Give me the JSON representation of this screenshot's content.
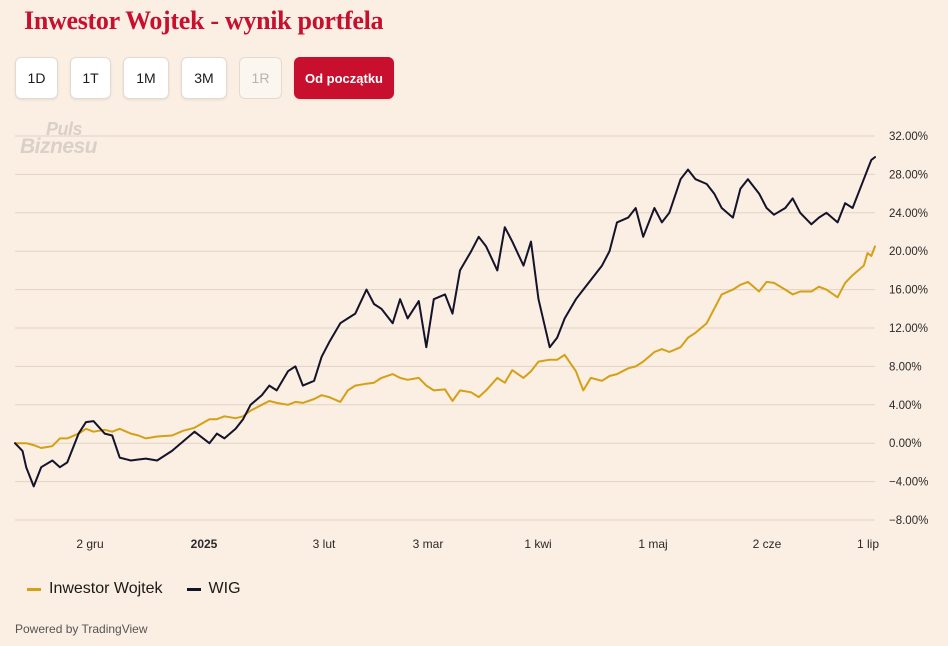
{
  "header": {
    "title": "Inwestor Wojtek - wynik portfela"
  },
  "range_buttons": [
    {
      "label": "1D",
      "state": "normal"
    },
    {
      "label": "1T",
      "state": "normal"
    },
    {
      "label": "1M",
      "state": "normal"
    },
    {
      "label": "3M",
      "state": "normal"
    },
    {
      "label": "1R",
      "state": "disabled"
    },
    {
      "label": "Od początku",
      "state": "active"
    }
  ],
  "watermark": {
    "line1": "Puls",
    "line2": "Biznesu"
  },
  "footer": {
    "powered_by": "Powered by TradingView"
  },
  "colors": {
    "title": "#c8102e",
    "active_button": "#c8102e",
    "wojtek": "#d4a017",
    "wig": "#13132a",
    "grid": "#e2d3c6",
    "background": "#fbeee2"
  },
  "chart_data": {
    "type": "line",
    "y_axis": {
      "position": "right",
      "ticks": [
        "32.00%",
        "28.00%",
        "24.00%",
        "20.00%",
        "16.00%",
        "12.00%",
        "8.00%",
        "4.00%",
        "0.00%",
        "−4.00%",
        "−8.00%"
      ],
      "ylim": [
        -8,
        32
      ],
      "unit": "%"
    },
    "x_axis": {
      "ticks": [
        "2 gru",
        "2025",
        "3 lut",
        "3 mar",
        "1 kwi",
        "1 maj",
        "2 cze",
        "1 lip"
      ],
      "bold_ticks": [
        "2025"
      ],
      "range": [
        "2024-11-15",
        "2025-07-03"
      ]
    },
    "grid": true,
    "legend_position": "bottom-left",
    "series": [
      {
        "name": "Inwestor Wojtek",
        "color": "#d4a017",
        "points": [
          [
            "2024-11-15",
            0.0
          ],
          [
            "2024-11-18",
            0.0
          ],
          [
            "2024-11-20",
            -0.2
          ],
          [
            "2024-11-22",
            -0.5
          ],
          [
            "2024-11-25",
            -0.3
          ],
          [
            "2024-11-27",
            0.5
          ],
          [
            "2024-11-29",
            0.5
          ],
          [
            "2024-12-02",
            1.0
          ],
          [
            "2024-12-04",
            1.5
          ],
          [
            "2024-12-06",
            1.2
          ],
          [
            "2024-12-09",
            1.4
          ],
          [
            "2024-12-11",
            1.2
          ],
          [
            "2024-12-13",
            1.5
          ],
          [
            "2024-12-16",
            1.0
          ],
          [
            "2024-12-18",
            0.8
          ],
          [
            "2024-12-20",
            0.5
          ],
          [
            "2024-12-23",
            0.7
          ],
          [
            "2024-12-27",
            0.8
          ],
          [
            "2024-12-30",
            1.3
          ],
          [
            "2025-01-02",
            1.6
          ],
          [
            "2025-01-06",
            2.5
          ],
          [
            "2025-01-08",
            2.5
          ],
          [
            "2025-01-10",
            2.8
          ],
          [
            "2025-01-13",
            2.6
          ],
          [
            "2025-01-15",
            2.8
          ],
          [
            "2025-01-17",
            3.4
          ],
          [
            "2025-01-20",
            4.0
          ],
          [
            "2025-01-22",
            4.4
          ],
          [
            "2025-01-24",
            4.2
          ],
          [
            "2025-01-27",
            4.0
          ],
          [
            "2025-01-29",
            4.3
          ],
          [
            "2025-01-31",
            4.2
          ],
          [
            "2025-02-03",
            4.6
          ],
          [
            "2025-02-05",
            5.0
          ],
          [
            "2025-02-07",
            4.8
          ],
          [
            "2025-02-10",
            4.3
          ],
          [
            "2025-02-12",
            5.5
          ],
          [
            "2025-02-14",
            6.0
          ],
          [
            "2025-02-17",
            6.2
          ],
          [
            "2025-02-19",
            6.3
          ],
          [
            "2025-02-21",
            6.8
          ],
          [
            "2025-02-24",
            7.2
          ],
          [
            "2025-02-26",
            6.8
          ],
          [
            "2025-02-28",
            6.6
          ],
          [
            "2025-03-03",
            6.8
          ],
          [
            "2025-03-05",
            6.0
          ],
          [
            "2025-03-07",
            5.5
          ],
          [
            "2025-03-10",
            5.6
          ],
          [
            "2025-03-12",
            4.4
          ],
          [
            "2025-03-14",
            5.5
          ],
          [
            "2025-03-17",
            5.3
          ],
          [
            "2025-03-19",
            4.8
          ],
          [
            "2025-03-21",
            5.5
          ],
          [
            "2025-03-24",
            6.8
          ],
          [
            "2025-03-26",
            6.3
          ],
          [
            "2025-03-28",
            7.6
          ],
          [
            "2025-03-31",
            6.8
          ],
          [
            "2025-04-02",
            7.5
          ],
          [
            "2025-04-04",
            8.5
          ],
          [
            "2025-04-07",
            8.7
          ],
          [
            "2025-04-09",
            8.7
          ],
          [
            "2025-04-11",
            9.2
          ],
          [
            "2025-04-14",
            7.5
          ],
          [
            "2025-04-16",
            5.5
          ],
          [
            "2025-04-18",
            6.8
          ],
          [
            "2025-04-21",
            6.5
          ],
          [
            "2025-04-23",
            7.0
          ],
          [
            "2025-04-25",
            7.2
          ],
          [
            "2025-04-28",
            7.8
          ],
          [
            "2025-04-30",
            8.0
          ],
          [
            "2025-05-02",
            8.5
          ],
          [
            "2025-05-05",
            9.5
          ],
          [
            "2025-05-07",
            9.8
          ],
          [
            "2025-05-09",
            9.5
          ],
          [
            "2025-05-12",
            10.0
          ],
          [
            "2025-05-14",
            11.0
          ],
          [
            "2025-05-16",
            11.5
          ],
          [
            "2025-05-19",
            12.5
          ],
          [
            "2025-05-21",
            14.0
          ],
          [
            "2025-05-23",
            15.5
          ],
          [
            "2025-05-26",
            16.0
          ],
          [
            "2025-05-28",
            16.5
          ],
          [
            "2025-05-30",
            16.8
          ],
          [
            "2025-06-02",
            15.8
          ],
          [
            "2025-06-04",
            16.8
          ],
          [
            "2025-06-06",
            16.7
          ],
          [
            "2025-06-09",
            16.0
          ],
          [
            "2025-06-11",
            15.5
          ],
          [
            "2025-06-13",
            15.8
          ],
          [
            "2025-06-16",
            15.8
          ],
          [
            "2025-06-18",
            16.3
          ],
          [
            "2025-06-20",
            16.0
          ],
          [
            "2025-06-23",
            15.2
          ],
          [
            "2025-06-25",
            16.7
          ],
          [
            "2025-06-27",
            17.5
          ],
          [
            "2025-06-30",
            18.5
          ],
          [
            "2025-07-01",
            19.8
          ],
          [
            "2025-07-02",
            19.5
          ],
          [
            "2025-07-03",
            20.5
          ]
        ]
      },
      {
        "name": "WIG",
        "color": "#13132a",
        "points": [
          [
            "2024-11-15",
            0.0
          ],
          [
            "2024-11-17",
            -0.8
          ],
          [
            "2024-11-18",
            -2.5
          ],
          [
            "2024-11-20",
            -4.5
          ],
          [
            "2024-11-22",
            -2.5
          ],
          [
            "2024-11-25",
            -1.8
          ],
          [
            "2024-11-27",
            -2.5
          ],
          [
            "2024-11-29",
            -2.0
          ],
          [
            "2024-12-02",
            1.0
          ],
          [
            "2024-12-04",
            2.2
          ],
          [
            "2024-12-06",
            2.3
          ],
          [
            "2024-12-09",
            1.0
          ],
          [
            "2024-12-11",
            0.8
          ],
          [
            "2024-12-13",
            -1.5
          ],
          [
            "2024-12-16",
            -1.8
          ],
          [
            "2024-12-18",
            -1.7
          ],
          [
            "2024-12-20",
            -1.6
          ],
          [
            "2024-12-23",
            -1.8
          ],
          [
            "2024-12-27",
            -0.8
          ],
          [
            "2024-12-30",
            0.2
          ],
          [
            "2025-01-02",
            1.2
          ],
          [
            "2025-01-06",
            0.0
          ],
          [
            "2025-01-08",
            1.0
          ],
          [
            "2025-01-10",
            0.5
          ],
          [
            "2025-01-13",
            1.5
          ],
          [
            "2025-01-15",
            2.5
          ],
          [
            "2025-01-17",
            4.0
          ],
          [
            "2025-01-20",
            5.0
          ],
          [
            "2025-01-22",
            6.0
          ],
          [
            "2025-01-24",
            5.5
          ],
          [
            "2025-01-27",
            7.5
          ],
          [
            "2025-01-29",
            8.0
          ],
          [
            "2025-01-31",
            6.0
          ],
          [
            "2025-02-03",
            6.5
          ],
          [
            "2025-02-05",
            9.0
          ],
          [
            "2025-02-07",
            10.5
          ],
          [
            "2025-02-10",
            12.5
          ],
          [
            "2025-02-12",
            13.0
          ],
          [
            "2025-02-14",
            13.5
          ],
          [
            "2025-02-17",
            16.0
          ],
          [
            "2025-02-19",
            14.5
          ],
          [
            "2025-02-21",
            14.0
          ],
          [
            "2025-02-24",
            12.5
          ],
          [
            "2025-02-26",
            15.0
          ],
          [
            "2025-02-28",
            13.0
          ],
          [
            "2025-03-03",
            14.8
          ],
          [
            "2025-03-05",
            10.0
          ],
          [
            "2025-03-07",
            15.0
          ],
          [
            "2025-03-10",
            15.5
          ],
          [
            "2025-03-12",
            13.5
          ],
          [
            "2025-03-14",
            18.0
          ],
          [
            "2025-03-17",
            20.0
          ],
          [
            "2025-03-19",
            21.5
          ],
          [
            "2025-03-21",
            20.5
          ],
          [
            "2025-03-24",
            18.0
          ],
          [
            "2025-03-26",
            22.5
          ],
          [
            "2025-03-28",
            21.0
          ],
          [
            "2025-03-31",
            18.5
          ],
          [
            "2025-04-02",
            21.0
          ],
          [
            "2025-04-04",
            15.0
          ],
          [
            "2025-04-07",
            10.0
          ],
          [
            "2025-04-09",
            11.0
          ],
          [
            "2025-04-11",
            13.0
          ],
          [
            "2025-04-14",
            15.0
          ],
          [
            "2025-04-16",
            16.0
          ],
          [
            "2025-04-18",
            17.0
          ],
          [
            "2025-04-21",
            18.5
          ],
          [
            "2025-04-23",
            20.0
          ],
          [
            "2025-04-25",
            23.0
          ],
          [
            "2025-04-28",
            23.5
          ],
          [
            "2025-04-30",
            24.5
          ],
          [
            "2025-05-02",
            21.5
          ],
          [
            "2025-05-05",
            24.5
          ],
          [
            "2025-05-07",
            23.0
          ],
          [
            "2025-05-09",
            24.0
          ],
          [
            "2025-05-12",
            27.5
          ],
          [
            "2025-05-14",
            28.5
          ],
          [
            "2025-05-16",
            27.5
          ],
          [
            "2025-05-19",
            27.0
          ],
          [
            "2025-05-21",
            26.0
          ],
          [
            "2025-05-23",
            24.5
          ],
          [
            "2025-05-26",
            23.5
          ],
          [
            "2025-05-28",
            26.5
          ],
          [
            "2025-05-30",
            27.5
          ],
          [
            "2025-06-02",
            26.0
          ],
          [
            "2025-06-04",
            24.5
          ],
          [
            "2025-06-06",
            23.8
          ],
          [
            "2025-06-09",
            24.5
          ],
          [
            "2025-06-11",
            25.5
          ],
          [
            "2025-06-13",
            24.0
          ],
          [
            "2025-06-16",
            22.8
          ],
          [
            "2025-06-18",
            23.5
          ],
          [
            "2025-06-20",
            24.0
          ],
          [
            "2025-06-23",
            23.0
          ],
          [
            "2025-06-25",
            25.0
          ],
          [
            "2025-06-27",
            24.5
          ],
          [
            "2025-06-30",
            27.5
          ],
          [
            "2025-07-01",
            28.5
          ],
          [
            "2025-07-02",
            29.5
          ],
          [
            "2025-07-03",
            29.8
          ]
        ]
      }
    ]
  }
}
